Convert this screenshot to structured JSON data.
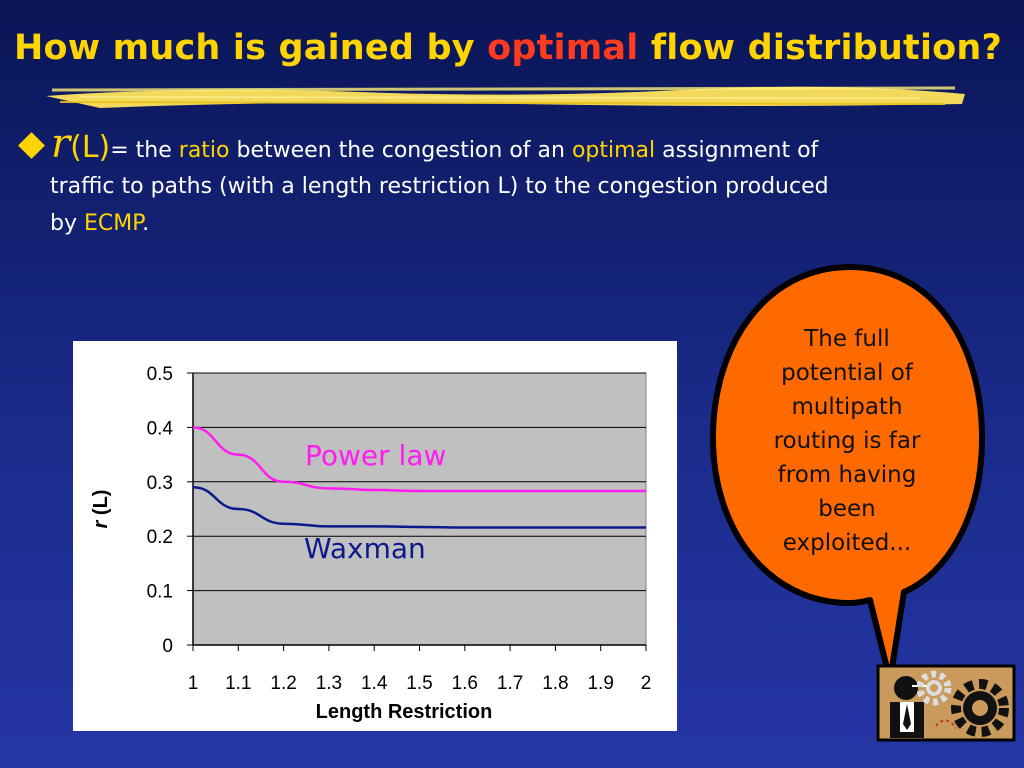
{
  "slide": {
    "title_pre": "How much is gained by ",
    "title_hl": "optimal",
    "title_post": " flow distribution?",
    "bullet": {
      "r_symbol": "r",
      "r_arg": "(L)",
      "t1": "= the ",
      "ratio": "ratio",
      "t2": " between the congestion of an ",
      "optimal": "optimal",
      "t3": " assignment of",
      "line2": "traffic to paths (with a length restriction L) to the congestion produced",
      "line3_pre": "by ",
      "ecmp": "ECMP",
      "line3_post": "."
    },
    "callout": "The full potential of multipath routing is far from having been exploited...",
    "icons": [
      "person-icon",
      "gear-icon"
    ]
  },
  "colors": {
    "title": "#ffd400",
    "title_highlight": "#ff3b1f",
    "callout_fill": "#ff6a00",
    "power_law": "#ff1cf0",
    "waxman": "#0a1a8c",
    "plot_bg": "#c0c0c0"
  },
  "chart_data": {
    "type": "line",
    "x": [
      1,
      1.1,
      1.2,
      1.3,
      1.4,
      1.5,
      1.6,
      1.7,
      1.8,
      1.9,
      2
    ],
    "series": [
      {
        "name": "Power law",
        "values": [
          0.4,
          0.35,
          0.3,
          0.288,
          0.285,
          0.283,
          0.283,
          0.283,
          0.283,
          0.283,
          0.283
        ]
      },
      {
        "name": "Waxman",
        "values": [
          0.29,
          0.25,
          0.223,
          0.218,
          0.218,
          0.217,
          0.216,
          0.216,
          0.216,
          0.216,
          0.216
        ]
      }
    ],
    "xlabel": "Length Restriction",
    "ylabel_italic": "r",
    "ylabel_rest": " (L)",
    "ylim": [
      0,
      0.5
    ],
    "xlim": [
      1,
      2
    ],
    "yticks": [
      "0",
      "0.1",
      "0.2",
      "0.3",
      "0.4",
      "0.5"
    ],
    "xticks": [
      "1",
      "1.1",
      "1.2",
      "1.3",
      "1.4",
      "1.5",
      "1.6",
      "1.7",
      "1.8",
      "1.9",
      "2"
    ],
    "grid": true,
    "legend": "inline labels"
  }
}
